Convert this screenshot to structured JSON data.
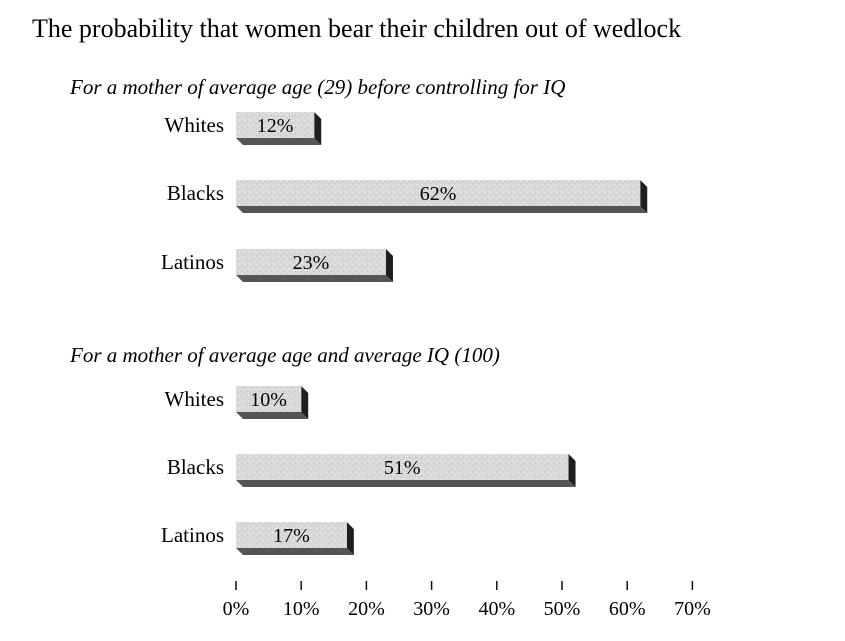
{
  "chart_data": {
    "type": "bar",
    "orientation": "horizontal",
    "title": "The probability that women bear their children out of wedlock",
    "value_suffix": "%",
    "xlim": [
      0,
      70
    ],
    "xticks": [
      "0%",
      "10%",
      "20%",
      "30%",
      "40%",
      "50%",
      "60%",
      "70%"
    ],
    "grid": false,
    "panels": [
      {
        "subtitle": "For a mother of average age (29) before controlling for IQ",
        "categories": [
          "Whites",
          "Blacks",
          "Latinos"
        ],
        "values": [
          12,
          62,
          23
        ]
      },
      {
        "subtitle": "For a mother of average age and average IQ  (100)",
        "categories": [
          "Whites",
          "Blacks",
          "Latinos"
        ],
        "values": [
          10,
          51,
          17
        ]
      }
    ]
  }
}
